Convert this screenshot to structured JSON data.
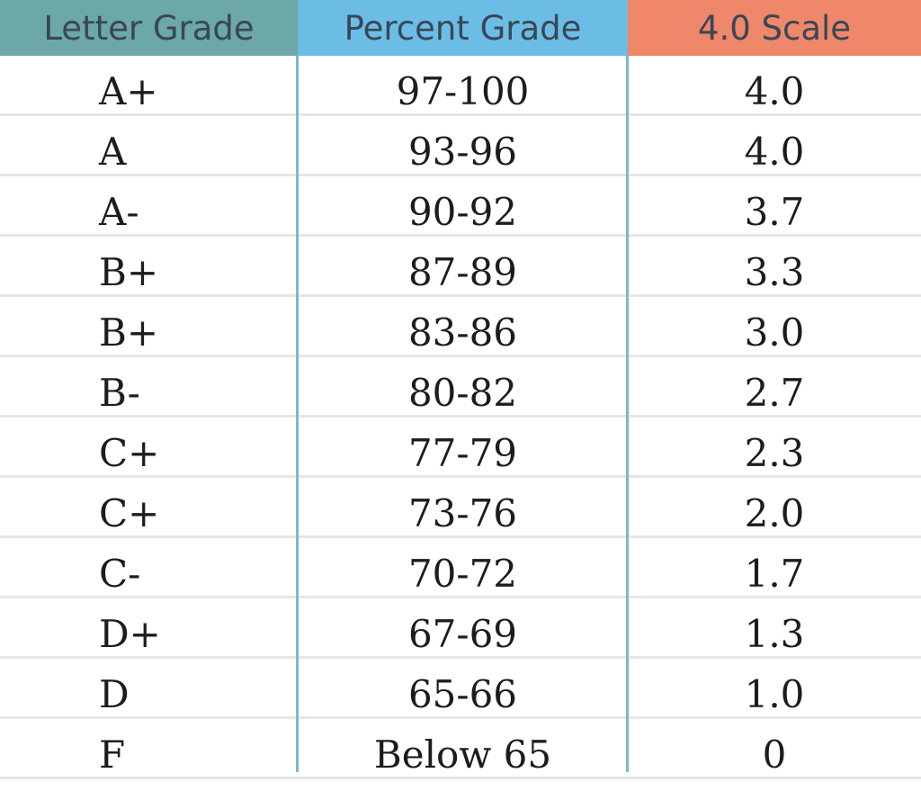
{
  "table": {
    "headers": [
      "Letter Grade",
      "Percent Grade",
      "4.0 Scale"
    ],
    "header_colors": [
      "#6ba8a6",
      "#6cbde5",
      "#ef876a"
    ],
    "rows": [
      [
        "A+",
        "97-100",
        "4.0"
      ],
      [
        "A",
        "93-96",
        "4.0"
      ],
      [
        "A-",
        "90-92",
        "3.7"
      ],
      [
        "B+",
        "87-89",
        "3.3"
      ],
      [
        "B+",
        "83-86",
        "3.0"
      ],
      [
        "B-",
        "80-82",
        "2.7"
      ],
      [
        "C+",
        "77-79",
        "2.3"
      ],
      [
        "C+",
        "73-76",
        "2.0"
      ],
      [
        "C-",
        "70-72",
        "1.7"
      ],
      [
        "D+",
        "67-69",
        "1.3"
      ],
      [
        "D",
        "65-66",
        "1.0"
      ],
      [
        "F",
        "Below 65",
        "0"
      ]
    ]
  }
}
